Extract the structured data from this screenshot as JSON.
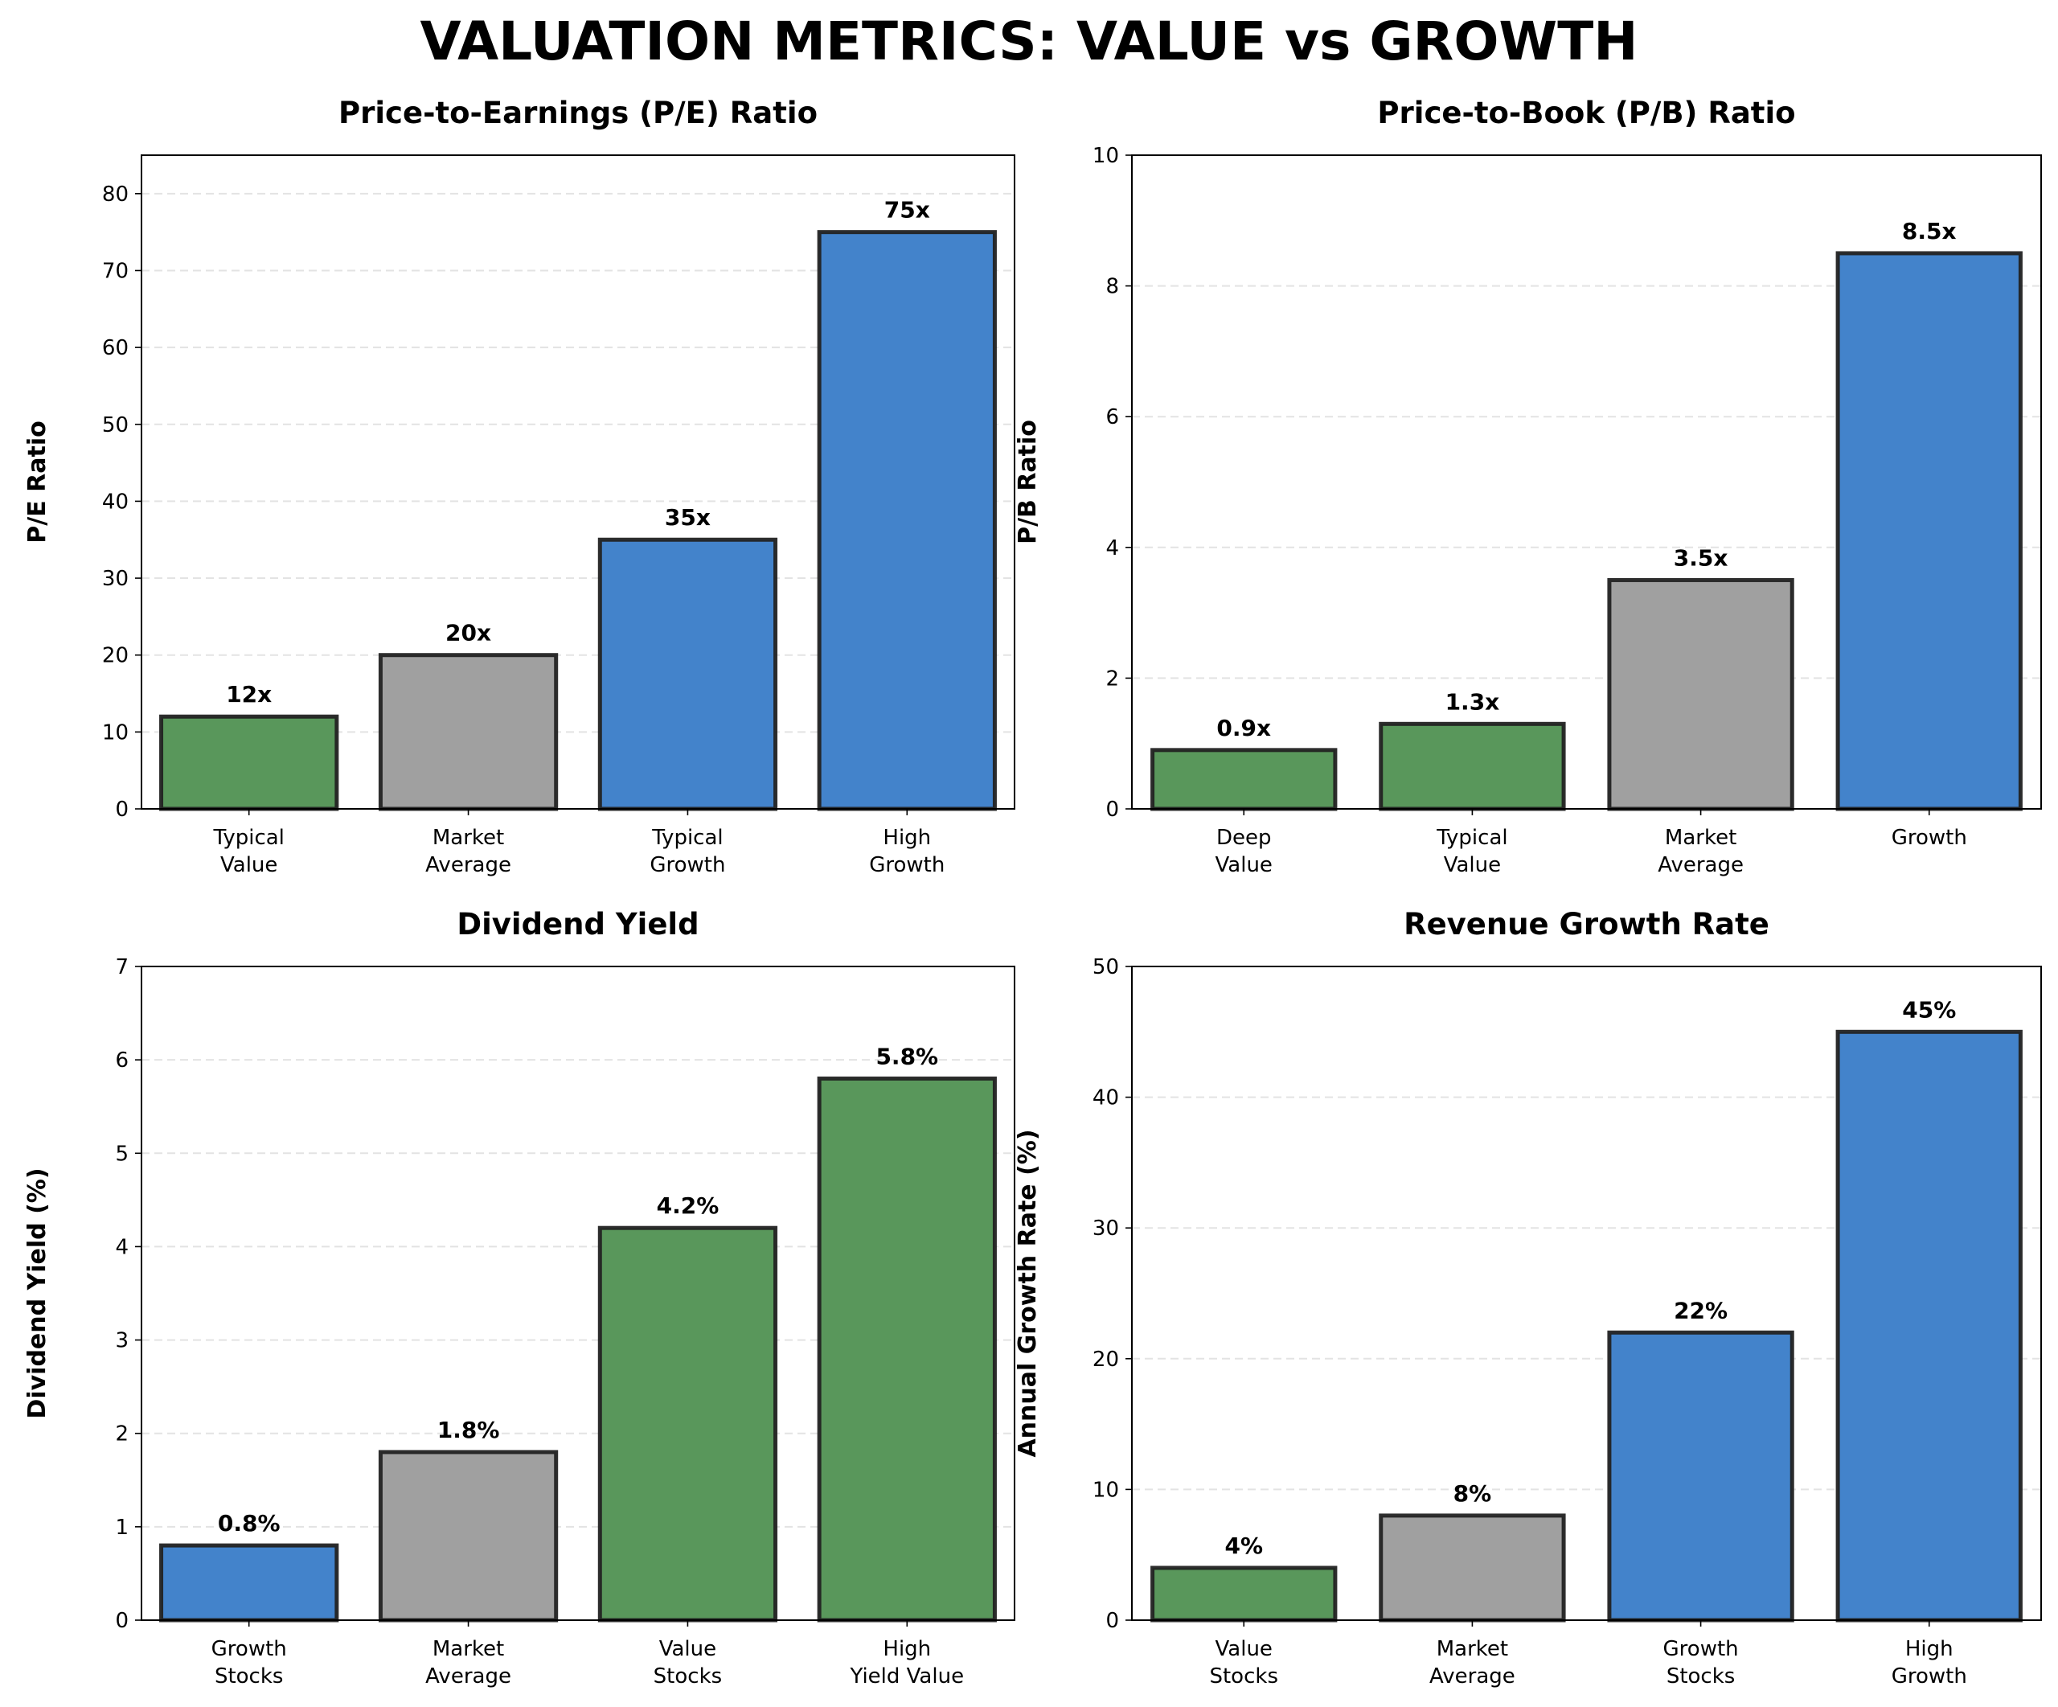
{
  "title": "VALUATION METRICS: VALUE vs GROWTH",
  "colors": {
    "value": "#59975b",
    "market": "#a0a0a0",
    "growth": "#4383cb",
    "edge": "#222222"
  },
  "chart_data": [
    {
      "type": "bar",
      "title": "Price-to-Earnings (P/E) Ratio",
      "ylabel": "P/E Ratio",
      "xlabel": "",
      "categories": [
        "Typical\nValue",
        "Market\nAverage",
        "Typical\nGrowth",
        "High\nGrowth"
      ],
      "values": [
        12,
        20,
        35,
        75
      ],
      "data_labels": [
        "12x",
        "20x",
        "35x",
        "75x"
      ],
      "bar_colors": [
        "value",
        "market",
        "growth",
        "growth"
      ],
      "ylim": [
        0,
        85
      ],
      "yticks": [
        0,
        10,
        20,
        30,
        40,
        50,
        60,
        70,
        80
      ],
      "grid": "y dashed"
    },
    {
      "type": "bar",
      "title": "Price-to-Book (P/B) Ratio",
      "ylabel": "P/B Ratio",
      "xlabel": "",
      "categories": [
        "Deep\nValue",
        "Typical\nValue",
        "Market\nAverage",
        "Growth"
      ],
      "values": [
        0.9,
        1.3,
        3.5,
        8.5
      ],
      "data_labels": [
        "0.9x",
        "1.3x",
        "3.5x",
        "8.5x"
      ],
      "bar_colors": [
        "value",
        "value",
        "market",
        "growth"
      ],
      "ylim": [
        0,
        10
      ],
      "yticks": [
        0,
        2,
        4,
        6,
        8,
        10
      ],
      "grid": "y dashed"
    },
    {
      "type": "bar",
      "title": "Dividend Yield",
      "ylabel": "Dividend Yield (%)",
      "xlabel": "",
      "categories": [
        "Growth\nStocks",
        "Market\nAverage",
        "Value\nStocks",
        "High\nYield Value"
      ],
      "values": [
        0.8,
        1.8,
        4.2,
        5.8
      ],
      "data_labels": [
        "0.8%",
        "1.8%",
        "4.2%",
        "5.8%"
      ],
      "bar_colors": [
        "growth",
        "market",
        "value",
        "value"
      ],
      "ylim": [
        0,
        7
      ],
      "yticks": [
        0,
        1,
        2,
        3,
        4,
        5,
        6,
        7
      ],
      "grid": "y dashed"
    },
    {
      "type": "bar",
      "title": "Revenue Growth Rate",
      "ylabel": "Annual Growth Rate (%)",
      "xlabel": "",
      "categories": [
        "Value\nStocks",
        "Market\nAverage",
        "Growth\nStocks",
        "High\nGrowth"
      ],
      "values": [
        4,
        8,
        22,
        45
      ],
      "data_labels": [
        "4%",
        "8%",
        "22%",
        "45%"
      ],
      "bar_colors": [
        "value",
        "market",
        "growth",
        "growth"
      ],
      "ylim": [
        0,
        50
      ],
      "yticks": [
        0,
        10,
        20,
        30,
        40,
        50
      ],
      "grid": "y dashed"
    }
  ]
}
